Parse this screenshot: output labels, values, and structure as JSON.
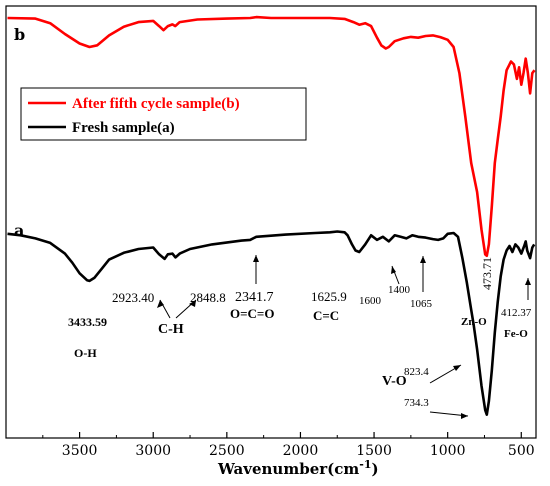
{
  "chart_data": {
    "type": "line",
    "xlabel": "Wavenumber(cm",
    "xlabel_sup": "-1",
    "xlabel_close": ")",
    "x_reversed": true,
    "xlim": [
      4000,
      400
    ],
    "x_ticks": [
      3500,
      3000,
      2500,
      2000,
      1500,
      1000,
      500
    ],
    "panel_labels": {
      "top": "b",
      "bottom": "a"
    },
    "legend": [
      {
        "label": "After fifth cycle sample(b)",
        "color": "#ff0000"
      },
      {
        "label": "Fresh sample(a)",
        "color": "#000000"
      }
    ],
    "series": [
      {
        "name": "After fifth cycle sample(b)",
        "color": "#ff0000",
        "points": [
          [
            3990,
            1.0
          ],
          [
            3800,
            0.98
          ],
          [
            3700,
            0.82
          ],
          [
            3600,
            0.45
          ],
          [
            3500,
            0.12
          ],
          [
            3433,
            0.0
          ],
          [
            3380,
            0.06
          ],
          [
            3300,
            0.4
          ],
          [
            3200,
            0.7
          ],
          [
            3100,
            0.86
          ],
          [
            3000,
            0.9
          ],
          [
            2960,
            0.72
          ],
          [
            2930,
            0.58
          ],
          [
            2900,
            0.72
          ],
          [
            2870,
            0.78
          ],
          [
            2850,
            0.72
          ],
          [
            2820,
            0.86
          ],
          [
            2700,
            0.95
          ],
          [
            2500,
            0.98
          ],
          [
            2341,
            1.0
          ],
          [
            2300,
            1.03
          ],
          [
            2200,
            1.0
          ],
          [
            2000,
            1.0
          ],
          [
            1800,
            1.0
          ],
          [
            1700,
            0.97
          ],
          [
            1640,
            0.86
          ],
          [
            1600,
            0.77
          ],
          [
            1560,
            0.82
          ],
          [
            1520,
            0.72
          ],
          [
            1480,
            0.32
          ],
          [
            1450,
            0.05
          ],
          [
            1420,
            -0.05
          ],
          [
            1400,
            0.0
          ],
          [
            1360,
            0.2
          ],
          [
            1300,
            0.3
          ],
          [
            1250,
            0.35
          ],
          [
            1200,
            0.32
          ],
          [
            1150,
            0.38
          ],
          [
            1100,
            0.4
          ],
          [
            1050,
            0.34
          ],
          [
            1000,
            0.25
          ],
          [
            960,
            0.0
          ],
          [
            920,
            -0.9
          ],
          [
            880,
            -2.4
          ],
          [
            840,
            -4.0
          ],
          [
            800,
            -5.0
          ],
          [
            770,
            -6.3
          ],
          [
            745,
            -7.15
          ],
          [
            734,
            -7.2
          ],
          [
            720,
            -6.8
          ],
          [
            700,
            -5.5
          ],
          [
            680,
            -4.0
          ],
          [
            660,
            -3.2
          ],
          [
            640,
            -2.4
          ],
          [
            620,
            -1.5
          ],
          [
            600,
            -0.8
          ],
          [
            570,
            -0.5
          ],
          [
            550,
            -0.6
          ],
          [
            530,
            -1.1
          ],
          [
            515,
            -0.7
          ],
          [
            500,
            -1.3
          ],
          [
            485,
            -0.9
          ],
          [
            470,
            -0.4
          ],
          [
            455,
            -0.9
          ],
          [
            440,
            -1.6
          ],
          [
            425,
            -0.9
          ],
          [
            410,
            -0.8
          ]
        ]
      },
      {
        "name": "Fresh sample(a)",
        "color": "#000000",
        "points": [
          [
            3990,
            1.0
          ],
          [
            3900,
            0.9
          ],
          [
            3800,
            0.7
          ],
          [
            3700,
            0.4
          ],
          [
            3600,
            -0.3
          ],
          [
            3550,
            -0.9
          ],
          [
            3500,
            -1.6
          ],
          [
            3450,
            -2.05
          ],
          [
            3433,
            -2.1
          ],
          [
            3400,
            -1.9
          ],
          [
            3350,
            -1.3
          ],
          [
            3300,
            -0.7
          ],
          [
            3200,
            -0.25
          ],
          [
            3100,
            0.0
          ],
          [
            3000,
            0.1
          ],
          [
            2960,
            -0.35
          ],
          [
            2923,
            -0.65
          ],
          [
            2900,
            -0.35
          ],
          [
            2870,
            -0.3
          ],
          [
            2849,
            -0.55
          ],
          [
            2820,
            -0.3
          ],
          [
            2750,
            0.0
          ],
          [
            2600,
            0.3
          ],
          [
            2400,
            0.55
          ],
          [
            2342,
            0.6
          ],
          [
            2300,
            0.8
          ],
          [
            2100,
            0.95
          ],
          [
            1900,
            1.05
          ],
          [
            1800,
            1.1
          ],
          [
            1750,
            1.15
          ],
          [
            1700,
            1.1
          ],
          [
            1680,
            0.9
          ],
          [
            1650,
            0.3
          ],
          [
            1626,
            -0.1
          ],
          [
            1600,
            -0.2
          ],
          [
            1560,
            0.3
          ],
          [
            1520,
            0.9
          ],
          [
            1480,
            0.6
          ],
          [
            1440,
            0.8
          ],
          [
            1400,
            0.5
          ],
          [
            1360,
            0.9
          ],
          [
            1320,
            0.8
          ],
          [
            1280,
            0.7
          ],
          [
            1240,
            0.9
          ],
          [
            1200,
            0.8
          ],
          [
            1150,
            0.75
          ],
          [
            1100,
            0.65
          ],
          [
            1065,
            0.6
          ],
          [
            1030,
            0.7
          ],
          [
            1000,
            1.0
          ],
          [
            960,
            1.05
          ],
          [
            930,
            0.8
          ],
          [
            900,
            -0.6
          ],
          [
            870,
            -2.2
          ],
          [
            840,
            -4.0
          ],
          [
            823,
            -5.0
          ],
          [
            800,
            -6.6
          ],
          [
            770,
            -9.0
          ],
          [
            745,
            -10.6
          ],
          [
            734,
            -10.9
          ],
          [
            720,
            -10.0
          ],
          [
            700,
            -8.0
          ],
          [
            680,
            -5.5
          ],
          [
            660,
            -3.5
          ],
          [
            640,
            -1.8
          ],
          [
            620,
            -0.7
          ],
          [
            600,
            -0.1
          ],
          [
            580,
            0.2
          ],
          [
            560,
            -0.2
          ],
          [
            540,
            0.3
          ],
          [
            520,
            0.1
          ],
          [
            500,
            -0.3
          ],
          [
            480,
            0.2
          ],
          [
            470,
            0.5
          ],
          [
            460,
            -0.1
          ],
          [
            440,
            -0.6
          ],
          [
            425,
            0.1
          ],
          [
            412,
            0.3
          ]
        ]
      }
    ],
    "annotations": {
      "oh_value": "3433.59",
      "oh_group": "O-H",
      "ch_value1": "2923.40",
      "ch_value2": "2848.8",
      "ch_group": "C-H",
      "oco_value": "2341.7",
      "oco_group": "O=C=O",
      "cc_value": "1625.9",
      "cc_group": "C=C",
      "v1600": "1600",
      "v1400": "1400",
      "v1065": "1065",
      "vo_group": "V-O",
      "vo_value1": "823.4",
      "vo_value2": "734.3",
      "zno_value": "473.71",
      "zno_group": "Zn-O",
      "feo_value": "412.37",
      "feo_group": "Fe-O"
    }
  }
}
